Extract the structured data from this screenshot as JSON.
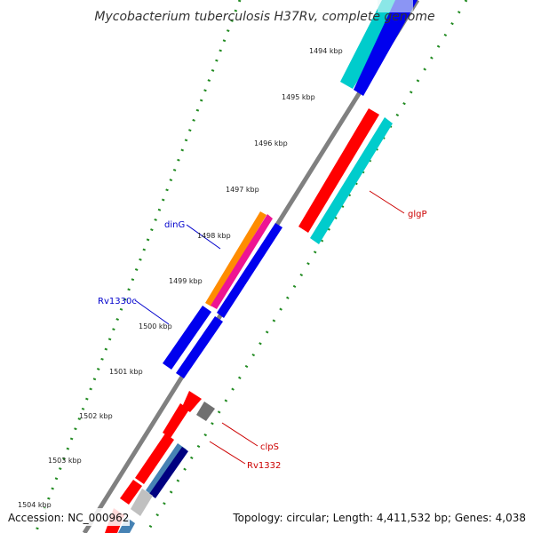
{
  "map": {
    "title": "Mycobacterium tuberculosis H37Rv, complete genome",
    "ticks": [
      "1494 kbp",
      "1495 kbp",
      "1496 kbp",
      "1497 kbp",
      "1498 kbp",
      "1499 kbp",
      "1500 kbp",
      "1501 kbp",
      "1502 kbp",
      "1503 kbp",
      "1504 kbp"
    ],
    "genes": [
      {
        "name": "dinG",
        "color": "#0000cc"
      },
      {
        "name": "Rv1330c",
        "color": "#0000cc"
      },
      {
        "name": "glgP",
        "color": "#cc0000"
      },
      {
        "name": "clpS",
        "color": "#cc0000"
      },
      {
        "name": "Rv1332",
        "color": "#cc0000"
      }
    ],
    "footer": {
      "accession": "Accession: NC_000962",
      "summary": "Topology: circular; Length: 4,411,532 bp; Genes: 4,038"
    }
  },
  "colors": {
    "backbone": "#808080",
    "tick_dots": "#228b22",
    "cds_red": "#ff0000",
    "cds_cyan": "#00cccc",
    "cds_blue": "#0000ee",
    "cds_orange": "#ff8c00",
    "cds_pink": "#ee1493",
    "cds_gray": "#707070",
    "cds_navy": "#000080",
    "cds_steel": "#4682b4"
  }
}
